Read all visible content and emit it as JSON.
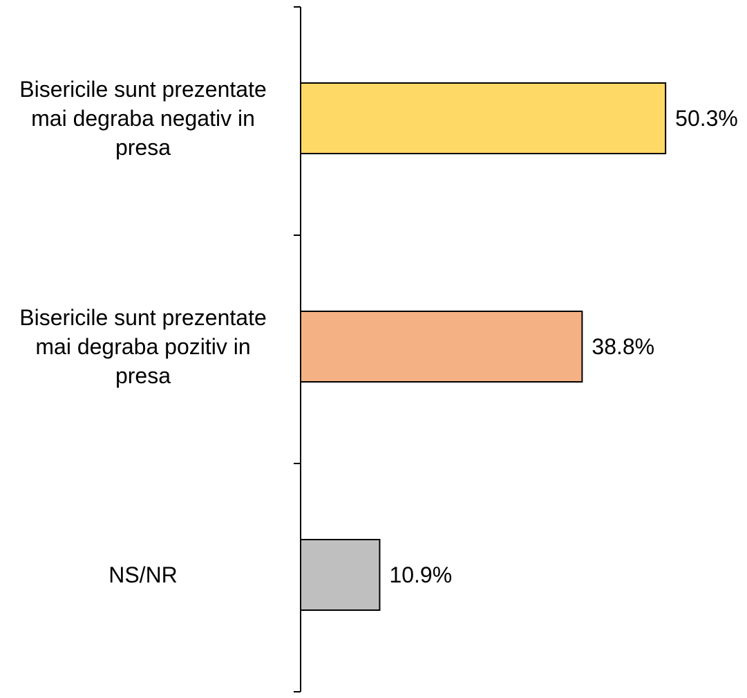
{
  "chart_data": {
    "type": "bar",
    "orientation": "horizontal",
    "categories": [
      "Bisericile sunt prezentate mai degraba negativ in presa",
      "Bisericile sunt prezentate mai degraba pozitiv in presa",
      "NS/NR"
    ],
    "category_lines": [
      [
        "Bisericile sunt prezentate",
        "mai degraba negativ in",
        "presa"
      ],
      [
        "Bisericile sunt prezentate",
        "mai degraba pozitiv in",
        "presa"
      ],
      [
        "NS/NR"
      ]
    ],
    "values": [
      50.3,
      38.8,
      10.9
    ],
    "data_labels": [
      "50.3%",
      "38.8%",
      "10.9%"
    ],
    "colors": [
      "#FFD966",
      "#F4B183",
      "#BFBFBF"
    ],
    "border_color": "#000000",
    "xlim": [
      0,
      60
    ],
    "grid": false,
    "legend": "none",
    "title": "",
    "xlabel": "",
    "ylabel": ""
  }
}
